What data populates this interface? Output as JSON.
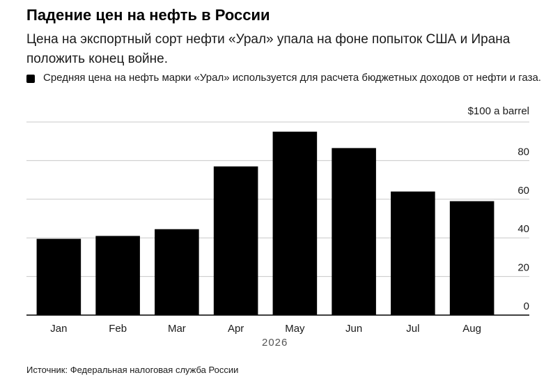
{
  "header": {
    "title": "Падение цен на нефть в России",
    "subtitle": "Цена на экспортный сорт нефти «Урал» упала на фоне попыток США и Ирана положить конец войне."
  },
  "legend": {
    "label": "Средняя цена на нефть марки «Урал» используется для расчета бюджетных доходов от нефти и газа.",
    "color": "#000000"
  },
  "footer": {
    "source": "Источник: Федеральная налоговая служба России"
  },
  "chart_data": {
    "type": "bar",
    "categories": [
      "Jan",
      "Feb",
      "Mar",
      "Apr",
      "May",
      "Jun",
      "Jul",
      "Aug"
    ],
    "values": [
      39.5,
      41,
      44.5,
      77,
      95,
      86.5,
      64,
      59
    ],
    "y_unit_label": "$100 a barrel",
    "y_ticks": [
      0,
      20,
      40,
      60,
      80
    ],
    "ylim": [
      0,
      100
    ],
    "x_group_label": "2026",
    "bar_color": "#000000",
    "grid": true,
    "y_axis_side": "right"
  }
}
